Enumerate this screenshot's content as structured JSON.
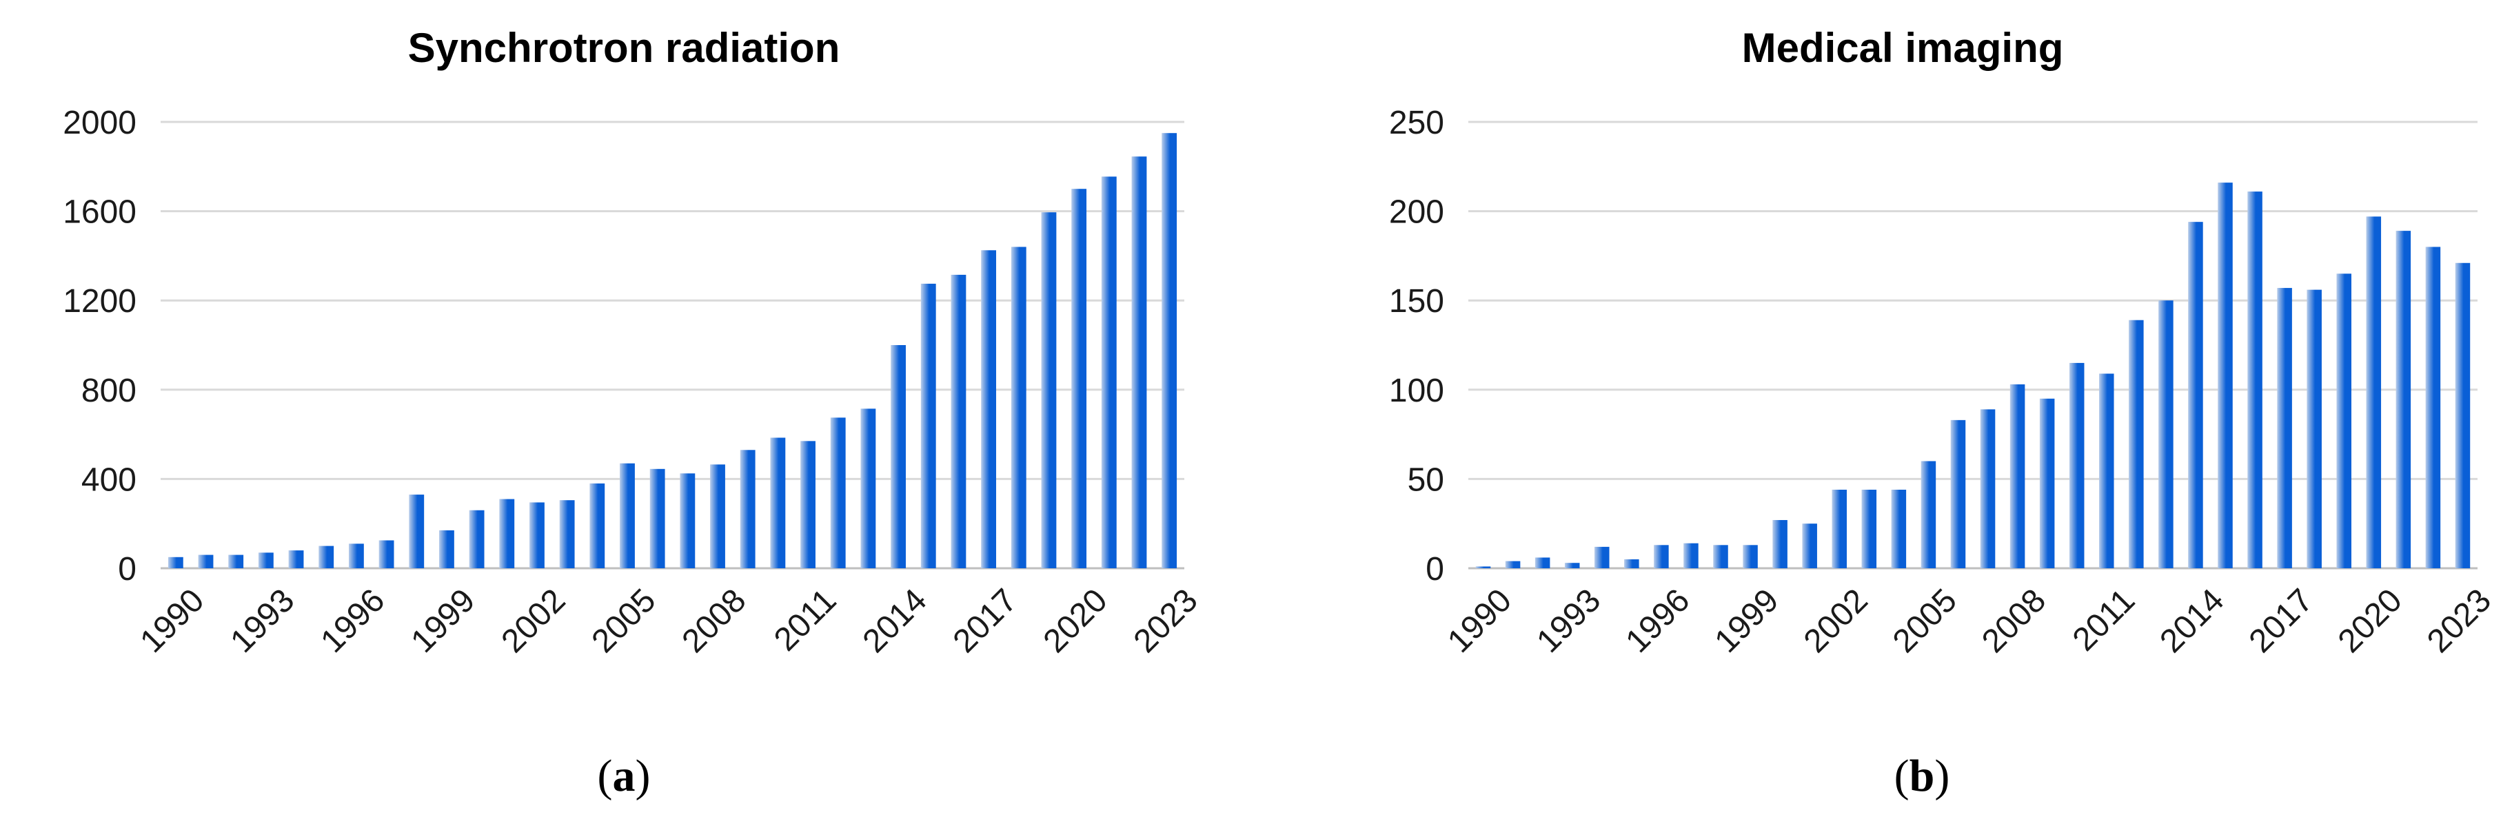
{
  "colors": {
    "bar_dark": "#0a5fd6",
    "bar_light": "#b9cdea",
    "gridline": "#d9d9d9",
    "text": "#000000"
  },
  "panels": [
    {
      "caption_letter": "a",
      "caption_open": "(",
      "caption_close": ")"
    },
    {
      "caption_letter": "b",
      "caption_open": "(",
      "caption_close": ")"
    }
  ],
  "chart_data": [
    {
      "type": "bar",
      "title": "Synchrotron radiation",
      "xlabel": "",
      "ylabel": "",
      "ylim": [
        0,
        2000
      ],
      "yticks": [
        0,
        400,
        800,
        1200,
        1600,
        2000
      ],
      "grid": true,
      "legend": "none",
      "x_tick_labels": [
        "1990",
        "1993",
        "1996",
        "1999",
        "2002",
        "2005",
        "2008",
        "2011",
        "2014",
        "2017",
        "2020",
        "2023"
      ],
      "categories": [
        "1990",
        "1991",
        "1992",
        "1993",
        "1994",
        "1995",
        "1996",
        "1997",
        "1998",
        "1999",
        "2000",
        "2001",
        "2002",
        "2003",
        "2004",
        "2005",
        "2006",
        "2007",
        "2008",
        "2009",
        "2010",
        "2011",
        "2012",
        "2013",
        "2014",
        "2015",
        "2016",
        "2017",
        "2018",
        "2019",
        "2020",
        "2021",
        "2022",
        "2023"
      ],
      "values": [
        50,
        60,
        60,
        70,
        80,
        100,
        110,
        125,
        330,
        170,
        260,
        310,
        295,
        305,
        380,
        470,
        445,
        425,
        465,
        530,
        585,
        570,
        675,
        715,
        1000,
        1275,
        1315,
        1425,
        1440,
        1595,
        1700,
        1755,
        1845,
        1950
      ]
    },
    {
      "type": "bar",
      "title": "Medical imaging",
      "xlabel": "",
      "ylabel": "",
      "ylim": [
        0,
        250
      ],
      "yticks": [
        0,
        50,
        100,
        150,
        200,
        250
      ],
      "grid": true,
      "legend": "none",
      "x_tick_labels": [
        "1990",
        "1993",
        "1996",
        "1999",
        "2002",
        "2005",
        "2008",
        "2011",
        "2014",
        "2017",
        "2020",
        "2023"
      ],
      "categories": [
        "1990",
        "1991",
        "1992",
        "1993",
        "1994",
        "1995",
        "1996",
        "1997",
        "1998",
        "1999",
        "2000",
        "2001",
        "2002",
        "2003",
        "2004",
        "2005",
        "2006",
        "2007",
        "2008",
        "2009",
        "2010",
        "2011",
        "2012",
        "2013",
        "2014",
        "2015",
        "2016",
        "2017",
        "2018",
        "2019",
        "2020",
        "2021",
        "2022",
        "2023"
      ],
      "values": [
        1,
        4,
        6,
        3,
        12,
        5,
        13,
        14,
        13,
        13,
        27,
        25,
        44,
        44,
        44,
        60,
        83,
        89,
        103,
        95,
        115,
        109,
        139,
        150,
        194,
        216,
        211,
        157,
        156,
        165,
        197,
        189,
        180,
        171
      ]
    }
  ]
}
